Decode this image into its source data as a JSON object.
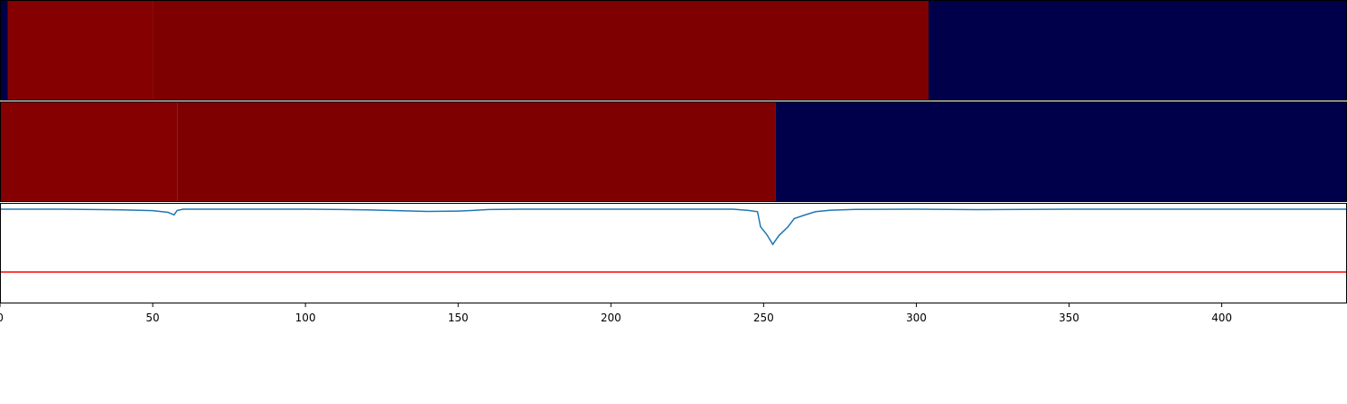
{
  "chart_data": [
    {
      "type": "heatmap",
      "panel": "top",
      "colormap": "seismic",
      "segments": [
        {
          "x_start": 0,
          "x_end": 2.5,
          "color": "#000046"
        },
        {
          "x_start": 2.5,
          "x_end": 50,
          "color": "#850000"
        },
        {
          "x_start": 50,
          "x_end": 304,
          "color": "#7f0000"
        },
        {
          "x_start": 304,
          "x_end": 441,
          "color": "#00004a"
        }
      ],
      "xlim": [
        0,
        441
      ]
    },
    {
      "type": "heatmap",
      "panel": "middle",
      "colormap": "seismic",
      "segments": [
        {
          "x_start": 0,
          "x_end": 58,
          "color": "#850000"
        },
        {
          "x_start": 58,
          "x_end": 254,
          "color": "#7f0000"
        },
        {
          "x_start": 254,
          "x_end": 441,
          "color": "#00004a"
        }
      ],
      "xlim": [
        0,
        441
      ]
    },
    {
      "type": "line",
      "panel": "bottom",
      "xlim": [
        0,
        441
      ],
      "ylim": [
        -0.75,
        0.05
      ],
      "grid": false,
      "xticks": [
        0,
        50,
        100,
        150,
        200,
        250,
        300,
        350,
        400
      ],
      "series": [
        {
          "color": "#1f77b4",
          "points": [
            [
              0,
              0
            ],
            [
              20,
              0
            ],
            [
              40,
              -0.005
            ],
            [
              50,
              -0.012
            ],
            [
              55,
              -0.025
            ],
            [
              57,
              -0.045
            ],
            [
              58,
              -0.01
            ],
            [
              60,
              0
            ],
            [
              100,
              0
            ],
            [
              120,
              -0.005
            ],
            [
              140,
              -0.018
            ],
            [
              150,
              -0.015
            ],
            [
              155,
              -0.01
            ],
            [
              160,
              -0.003
            ],
            [
              170,
              0
            ],
            [
              240,
              0
            ],
            [
              245,
              -0.01
            ],
            [
              248,
              -0.02
            ],
            [
              249,
              -0.14
            ],
            [
              251,
              -0.2
            ],
            [
              253,
              -0.28
            ],
            [
              255,
              -0.21
            ],
            [
              258,
              -0.14
            ],
            [
              260,
              -0.075
            ],
            [
              263,
              -0.05
            ],
            [
              267,
              -0.02
            ],
            [
              272,
              -0.008
            ],
            [
              280,
              -0.002
            ],
            [
              300,
              0
            ],
            [
              320,
              -0.004
            ],
            [
              335,
              -0.002
            ],
            [
              350,
              0
            ],
            [
              441,
              0
            ]
          ]
        },
        {
          "color": "#ff0000",
          "points": [
            [
              0,
              -0.5
            ],
            [
              441,
              -0.5
            ]
          ]
        }
      ]
    }
  ]
}
